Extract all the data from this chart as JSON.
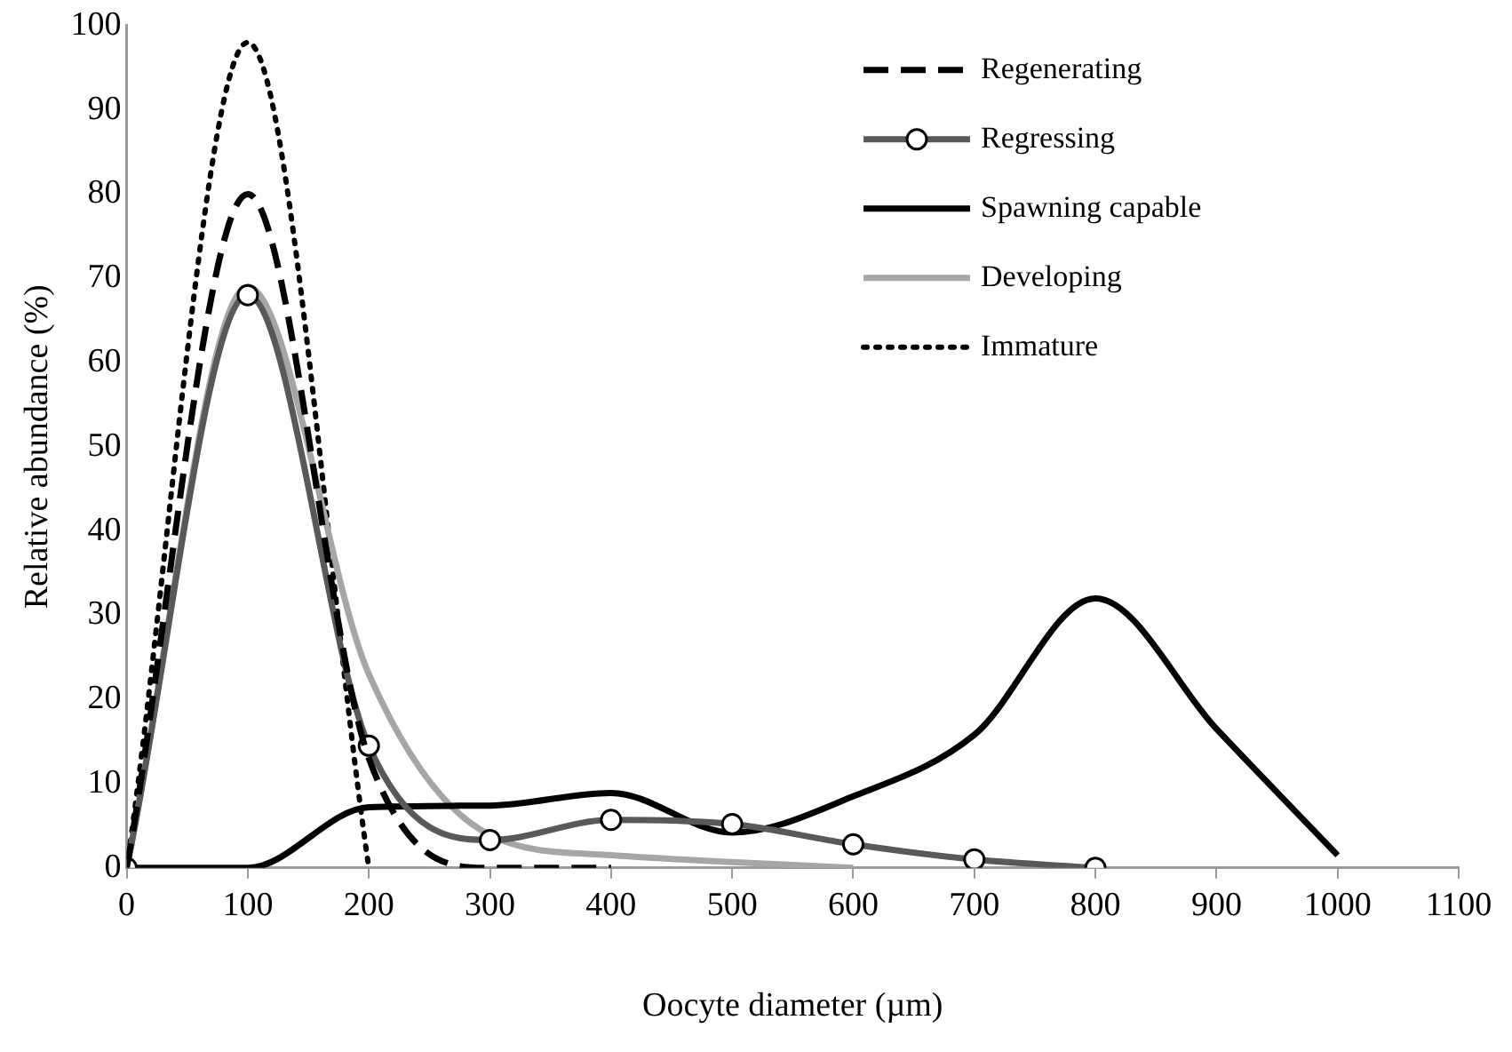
{
  "chart_data": {
    "type": "line",
    "xlabel": "Oocyte diameter (µm)",
    "ylabel": "Relative abundance (%)",
    "xlim": [
      0,
      1100
    ],
    "xticks": [
      0,
      100,
      200,
      300,
      400,
      500,
      600,
      700,
      800,
      900,
      1000,
      1100
    ],
    "ylim": [
      0,
      100
    ],
    "yticks": [
      0,
      10,
      20,
      30,
      40,
      50,
      60,
      70,
      80,
      90,
      100
    ],
    "grid": false,
    "legend": "top right",
    "series": [
      {
        "name": "Regenerating",
        "color": "#000000",
        "line_style": "dashed",
        "marker": "none",
        "x": [
          0,
          100,
          200,
          300,
          400
        ],
        "values": [
          0,
          80,
          13,
          0,
          0
        ]
      },
      {
        "name": "Regressing",
        "color": "#595959",
        "line_style": "solid",
        "marker": "circle",
        "x": [
          0,
          100,
          200,
          300,
          400,
          500,
          600,
          700,
          800
        ],
        "values": [
          0,
          68,
          14.5,
          3.3,
          5.7,
          5.2,
          2.8,
          1,
          0
        ]
      },
      {
        "name": "Spawning capable",
        "color": "#000000",
        "line_style": "solid",
        "marker": "none",
        "x": [
          0,
          100,
          200,
          300,
          400,
          500,
          600,
          700,
          800,
          900,
          1000
        ],
        "values": [
          0,
          0,
          7.2,
          7.4,
          8.9,
          4.2,
          8.5,
          15.8,
          32,
          16.5,
          1.5
        ]
      },
      {
        "name": "Developing",
        "color": "#a6a6a6",
        "line_style": "solid",
        "marker": "none",
        "x": [
          0,
          100,
          200,
          300,
          400,
          500,
          600
        ],
        "values": [
          0,
          69,
          23,
          3.9,
          1.5,
          0.7,
          0
        ]
      },
      {
        "name": "Immature",
        "color": "#000000",
        "line_style": "dotted",
        "marker": "none",
        "x": [
          0,
          100,
          200
        ],
        "values": [
          0,
          98,
          0
        ]
      }
    ]
  }
}
